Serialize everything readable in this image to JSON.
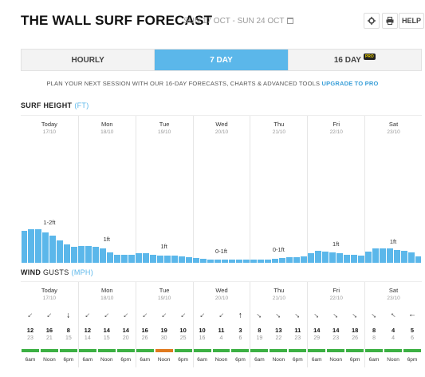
{
  "header": {
    "title": "THE WALL SURF FORECAST",
    "date_range": "SUN 17 OCT - SUN 24 OCT",
    "settings_icon": "gear-icon",
    "print_icon": "print-icon",
    "help_label": "HELP"
  },
  "tabs": [
    {
      "label": "HOURLY",
      "active": false
    },
    {
      "label": "7 DAY",
      "active": true
    },
    {
      "label": "16 DAY",
      "active": false,
      "badge": "PRO"
    }
  ],
  "promo": {
    "text": "PLAN YOUR NEXT SESSION WITH OUR 16-DAY FORECASTS, CHARTS & ADVANCED TOOLS ",
    "link": "UPGRADE TO PRO"
  },
  "surf": {
    "title": "SURF HEIGHT",
    "unit": "(FT)",
    "bar_color": "#5bb7ea",
    "max_ft": 3,
    "heights": [
      0.85,
      0.9,
      0.9,
      0.82,
      0.72,
      0.6,
      0.5,
      0.42,
      0.45,
      0.45,
      0.42,
      0.38,
      0.28,
      0.22,
      0.22,
      0.22,
      0.25,
      0.25,
      0.22,
      0.2,
      0.2,
      0.2,
      0.18,
      0.15,
      0.12,
      0.1,
      0.08,
      0.08,
      0.08,
      0.08,
      0.08,
      0.08,
      0.08,
      0.08,
      0.08,
      0.1,
      0.12,
      0.15,
      0.15,
      0.18,
      0.25,
      0.32,
      0.3,
      0.28,
      0.25,
      0.22,
      0.22,
      0.2,
      0.3,
      0.38,
      0.38,
      0.38,
      0.35,
      0.32,
      0.28,
      0.18
    ]
  },
  "days": [
    {
      "name": "Today",
      "date": "17/10",
      "surf_label": "1-2ft"
    },
    {
      "name": "Mon",
      "date": "18/10",
      "surf_label": "1ft"
    },
    {
      "name": "Tue",
      "date": "19/10",
      "surf_label": "1ft"
    },
    {
      "name": "Wed",
      "date": "20/10",
      "surf_label": "0-1ft"
    },
    {
      "name": "Thu",
      "date": "21/10",
      "surf_label": "0-1ft"
    },
    {
      "name": "Fri",
      "date": "22/10",
      "surf_label": "1ft"
    },
    {
      "name": "Sat",
      "date": "23/10",
      "surf_label": "1ft"
    }
  ],
  "wind": {
    "title": "WIND",
    "gusts_label": "GUSTS",
    "unit": "(MPH)",
    "times": [
      "6am",
      "Noon",
      "6pm"
    ],
    "colors": {
      "good": "#3cb043",
      "fair": "#e07a1f"
    },
    "entries": [
      {
        "dir": 135,
        "speed": "12",
        "gust": "23",
        "rating": "good"
      },
      {
        "dir": 135,
        "speed": "16",
        "gust": "21",
        "rating": "good"
      },
      {
        "dir": 90,
        "speed": "8",
        "gust": "15",
        "rating": "good"
      },
      {
        "dir": 135,
        "speed": "12",
        "gust": "14",
        "rating": "good"
      },
      {
        "dir": 135,
        "speed": "14",
        "gust": "15",
        "rating": "good"
      },
      {
        "dir": 135,
        "speed": "14",
        "gust": "20",
        "rating": "good"
      },
      {
        "dir": 135,
        "speed": "16",
        "gust": "26",
        "rating": "good"
      },
      {
        "dir": 135,
        "speed": "19",
        "gust": "30",
        "rating": "fair"
      },
      {
        "dir": 135,
        "speed": "10",
        "gust": "25",
        "rating": "good"
      },
      {
        "dir": 135,
        "speed": "10",
        "gust": "16",
        "rating": "good"
      },
      {
        "dir": 135,
        "speed": "11",
        "gust": "4",
        "rating": "good"
      },
      {
        "dir": 270,
        "speed": "3",
        "gust": "6",
        "rating": "good"
      },
      {
        "dir": 45,
        "speed": "8",
        "gust": "19",
        "rating": "good"
      },
      {
        "dir": 45,
        "speed": "13",
        "gust": "22",
        "rating": "good"
      },
      {
        "dir": 45,
        "speed": "11",
        "gust": "23",
        "rating": "good"
      },
      {
        "dir": 45,
        "speed": "14",
        "gust": "29",
        "rating": "good"
      },
      {
        "dir": 45,
        "speed": "14",
        "gust": "23",
        "rating": "good"
      },
      {
        "dir": 45,
        "speed": "18",
        "gust": "26",
        "rating": "good"
      },
      {
        "dir": 45,
        "speed": "8",
        "gust": "8",
        "rating": "good"
      },
      {
        "dir": 225,
        "speed": "4",
        "gust": "4",
        "rating": "good"
      },
      {
        "dir": 180,
        "speed": "5",
        "gust": "6",
        "rating": "good"
      }
    ]
  }
}
